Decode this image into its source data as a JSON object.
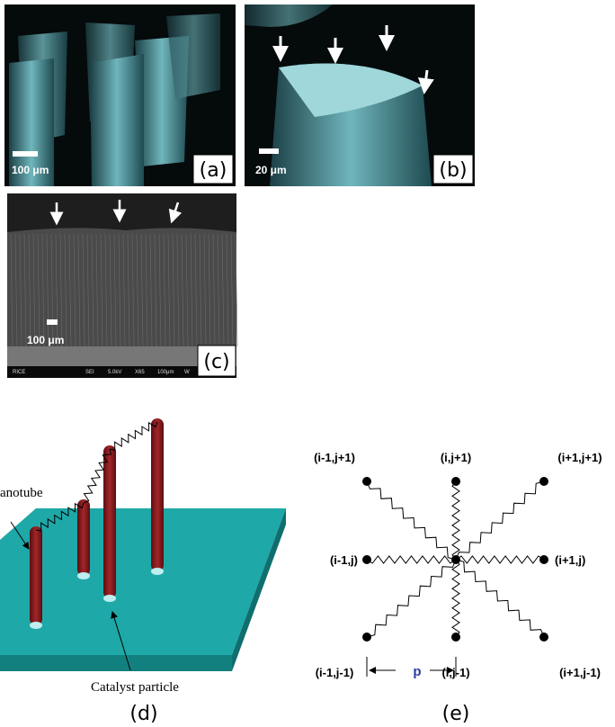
{
  "panels": {
    "a": {
      "scale_bar": "100 μm",
      "label": "(a)"
    },
    "b": {
      "scale_bar": "20 μm",
      "label": "(b)"
    },
    "c": {
      "scale_bar": "100 μm",
      "label": "(c)",
      "footer": [
        "RICE",
        "SEI",
        "5.0kV",
        "X65",
        "100μm",
        "W"
      ]
    },
    "d": {
      "nanotube": "anotube",
      "catalyst": "Catalyst particle",
      "label": "(d)"
    },
    "e": {
      "nodes": [
        "(i-1,j+1)",
        "(i,j+1)",
        "(i+1,j+1)",
        "(i-1,j)",
        "(i+1,j)",
        "(i-1,j-1)",
        "(i,j-1)",
        "(i+1,j-1)"
      ],
      "spacing": "p",
      "label": "(e)"
    }
  }
}
